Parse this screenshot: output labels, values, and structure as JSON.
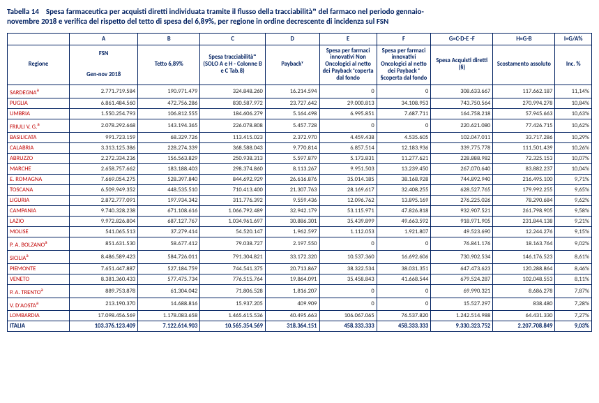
{
  "title_line1": "Tabella 14    Spesa farmaceutica per acquisti diretti individuata tramite il flusso della tracciabilitàᵐ del farmaco nel periodo gennaio-",
  "title_line2": "novembre 2018 e verifica del rispetto del tetto di spesa del 6,89%, per regione in ordine decrescente di incidenza sul FSN",
  "column_letters": [
    "",
    "A",
    "B",
    "C",
    "D",
    "E",
    "F",
    "G=C-D-E -F",
    "H=G-B",
    "I=G/A%"
  ],
  "headers": {
    "region": "Regione",
    "a_line1": "FSN",
    "a_line2": "Gen-nov 2018",
    "b": "Tetto 6,89%",
    "c": "Spesa tracciabilitàᵐ (SOLO A e H - Colonne B e C Tab.8)",
    "d": "Paybackʸ",
    "e": "Spesa per farmaci innovativi Non Oncologici al netto dei Payback ᶻcoperta dal fondo",
    "f": "Spesa per farmaci innovativi Oncologici al netto dei Payback ᶻ §coperta dal fondo",
    "g": "Spesa Acquisti diretti (§)",
    "h": "Scostamento assoluto",
    "i": "Inc. %"
  },
  "rows": [
    {
      "region": "SARDEGNA",
      "sup": "a",
      "a": "2.771.719.584",
      "b": "190.971.479",
      "c": "324.848.260",
      "d": "16.214.594",
      "e": "0",
      "f": "0",
      "g": "308.633.667",
      "h": "117.662.187",
      "i": "11,14%"
    },
    {
      "region": "PUGLIA",
      "a": "6.861.484.560",
      "b": "472.756.286",
      "c": "830.587.972",
      "d": "23.727.642",
      "e": "29.000.813",
      "f": "34.108.953",
      "g": "743.750.564",
      "h": "270.994.278",
      "i": "10,84%"
    },
    {
      "region": "UMBRIA",
      "a": "1.550.254.793",
      "b": "106.812.555",
      "c": "184.606.279",
      "d": "5.164.498",
      "e": "6.995.851",
      "f": "7.687.711",
      "g": "164.758.218",
      "h": "57.945.663",
      "i": "10,63%"
    },
    {
      "region": "FRIULI V. G.",
      "sup": "a",
      "a": "2.078.292.668",
      "b": "143.194.365",
      "c": "226.078.808",
      "d": "5.457.728",
      "e": "0",
      "f": "0",
      "g": "220.621.080",
      "h": "77.426.715",
      "i": "10,62%"
    },
    {
      "region": "BASILICATA",
      "a": "991.723.159",
      "b": "68.329.726",
      "c": "113.415.023",
      "d": "2.372.970",
      "e": "4.459.438",
      "f": "4.535.605",
      "g": "102.047.011",
      "h": "33.717.286",
      "i": "10,29%"
    },
    {
      "region": "CALABRIA",
      "a": "3.313.125.386",
      "b": "228.274.339",
      "c": "368.588.043",
      "d": "9.770.814",
      "e": "6.857.514",
      "f": "12.183.936",
      "g": "339.775.778",
      "h": "111.501.439",
      "i": "10,26%"
    },
    {
      "region": "ABRUZZO",
      "a": "2.272.334.236",
      "b": "156.563.829",
      "c": "250.938.313",
      "d": "5.597.879",
      "e": "5.173.831",
      "f": "11.277.621",
      "g": "228.888.982",
      "h": "72.325.153",
      "i": "10,07%"
    },
    {
      "region": "MARCHE",
      "a": "2.658.757.662",
      "b": "183.188.403",
      "c": "298.374.860",
      "d": "8.113.267",
      "e": "9.951.503",
      "f": "13.239.450",
      "g": "267.070.640",
      "h": "83.882.237",
      "i": "10,04%"
    },
    {
      "region": "E. ROMAGNA",
      "a": "7.669.054.275",
      "b": "528.397.840",
      "c": "844.692.929",
      "d": "26.616.876",
      "e": "35.014.185",
      "f": "38.168.928",
      "g": "744.892.940",
      "h": "216.495.100",
      "i": "9,71%"
    },
    {
      "region": "TOSCANA",
      "a": "6.509.949.352",
      "b": "448.535.510",
      "c": "710.413.400",
      "d": "21.307.763",
      "e": "28.169.617",
      "f": "32.408.255",
      "g": "628.527.765",
      "h": "179.992.255",
      "i": "9,65%"
    },
    {
      "region": "LIGURIA",
      "a": "2.872.777.091",
      "b": "197.934.342",
      "c": "311.776.392",
      "d": "9.559.436",
      "e": "12.096.762",
      "f": "13.895.169",
      "g": "276.225.026",
      "h": "78.290.684",
      "i": "9,62%"
    },
    {
      "region": "CAMPANIA",
      "a": "9.740.328.238",
      "b": "671.108.616",
      "c": "1.066.792.489",
      "d": "32.942.179",
      "e": "53.115.971",
      "f": "47.826.818",
      "g": "932.907.521",
      "h": "261.798.905",
      "i": "9,58%"
    },
    {
      "region": "LAZIO",
      "a": "9.972.826.804",
      "b": "687.127.767",
      "c": "1.034.961.697",
      "d": "30.886.301",
      "e": "35.439.899",
      "f": "49.663.592",
      "g": "918.971.905",
      "h": "231.844.138",
      "i": "9,21%"
    },
    {
      "region": "MOLISE",
      "a": "541.065.513",
      "b": "37.279.414",
      "c": "54.520.147",
      "d": "1.962.597",
      "e": "1.112.053",
      "f": "1.921.807",
      "g": "49.523.690",
      "h": "12.244.276",
      "i": "9,15%"
    },
    {
      "region": "P. A. BOLZANO",
      "sup": "a",
      "a": "851.631.530",
      "b": "58.677.412",
      "c": "79.038.727",
      "d": "2.197.550",
      "e": "0",
      "f": "0",
      "g": "76.841.176",
      "h": "18.163.764",
      "i": "9,02%"
    },
    {
      "region": "SICILIA",
      "sup": "a",
      "a": "8.486.589.423",
      "b": "584.726.011",
      "c": "791.304.821",
      "d": "33.172.320",
      "e": "10.537.360",
      "f": "16.692.606",
      "g": "730.902.534",
      "h": "146.176.523",
      "i": "8,61%"
    },
    {
      "region": "PIEMONTE",
      "a": "7.651.447.887",
      "b": "527.184.759",
      "c": "744.541.375",
      "d": "20.713.867",
      "e": "38.322.534",
      "f": "38.031.351",
      "g": "647.473.623",
      "h": "120.288.864",
      "i": "8,46%"
    },
    {
      "region": "VENETO",
      "a": "8.381.360.433",
      "b": "577.475.734",
      "c": "776.515.764",
      "d": "19.864.091",
      "e": "35.458.843",
      "f": "41.668.544",
      "g": "679.524.287",
      "h": "102.048.553",
      "i": "8,11%"
    },
    {
      "region": "P. A. TRENTO",
      "sup": "a",
      "a": "889.753.878",
      "b": "61.304.042",
      "c": "71.806.528",
      "d": "1.816.207",
      "e": "0",
      "f": "0",
      "g": "69.990.321",
      "h": "8.686.278",
      "i": "7,87%"
    },
    {
      "region": "V. D'AOSTA",
      "sup": "a",
      "a": "213.190.370",
      "b": "14.688.816",
      "c": "15.937.205",
      "d": "409.909",
      "e": "0",
      "f": "0",
      "g": "15.527.297",
      "h": "838.480",
      "i": "7,28%"
    },
    {
      "region": "LOMBARDIA",
      "a": "17.098.456.569",
      "b": "1.178.083.658",
      "c": "1.465.615.536",
      "d": "40.495.663",
      "e": "106.067.065",
      "f": "76.537.820",
      "g": "1.242.514.988",
      "h": "64.431.330",
      "i": "7,27%"
    }
  ],
  "total": {
    "region": "ITALIA",
    "a": "103.376.123.409",
    "b": "7.122.614.903",
    "c": "10.565.354.569",
    "d": "318.364.151",
    "e": "458.333.333",
    "f": "458.333.333",
    "g": "9.330.323.752",
    "h": "2.207.708.849",
    "i": "9,03%"
  }
}
